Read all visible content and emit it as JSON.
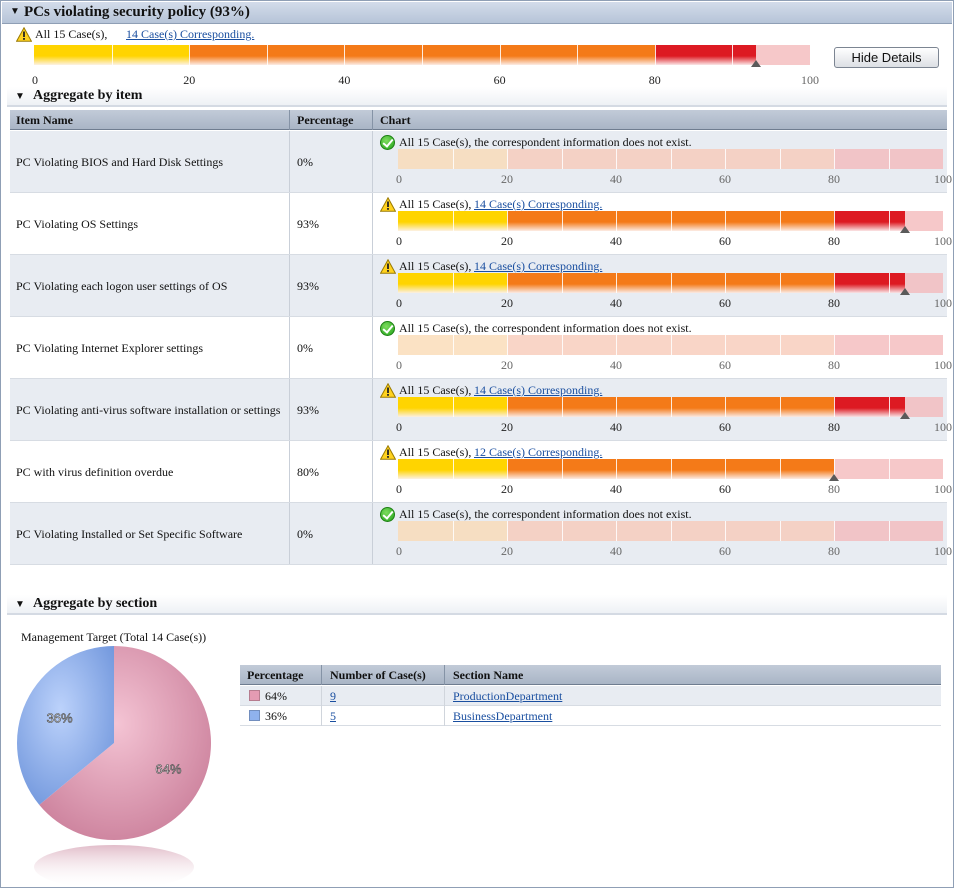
{
  "header": {
    "title": "PCs violating security policy (93%)"
  },
  "summary": {
    "total_text": "All 15 Case(s),",
    "link_text": "14 Case(s) Corresponding.",
    "percent": 93,
    "hide_button": "Hide Details"
  },
  "axis_labels": [
    "0",
    "20",
    "40",
    "60",
    "80",
    "100"
  ],
  "colors": {
    "yellow": "#ffd400",
    "orange": "#f47a18",
    "red": "#dd1a22",
    "empty": "#fadcdc",
    "accent": "#1a4fa0"
  },
  "aggregate_by_item": {
    "title": "Aggregate by item",
    "columns": [
      "Item Name",
      "Percentage",
      "Chart"
    ],
    "rows": [
      {
        "name": "PC Violating BIOS and Hard Disk Settings",
        "percentage": "0%",
        "value": 0,
        "status": "ok",
        "status_text": "All 15 Case(s), the correspondent information does not exist.",
        "link": ""
      },
      {
        "name": "PC Violating OS Settings",
        "percentage": "93%",
        "value": 93,
        "status": "warn",
        "status_text": "All 15 Case(s),",
        "link": "14 Case(s) Corresponding."
      },
      {
        "name": "PC Violating each logon user settings of OS",
        "percentage": "93%",
        "value": 93,
        "status": "warn",
        "status_text": "All 15 Case(s),",
        "link": "14 Case(s) Corresponding."
      },
      {
        "name": "PC Violating Internet Explorer settings",
        "percentage": "0%",
        "value": 0,
        "status": "ok",
        "status_text": "All 15 Case(s), the correspondent information does not exist.",
        "link": ""
      },
      {
        "name": "PC Violating anti-virus software installation or settings",
        "percentage": "93%",
        "value": 93,
        "status": "warn",
        "status_text": "All 15 Case(s),",
        "link": "14 Case(s) Corresponding."
      },
      {
        "name": "PC with virus definition overdue",
        "percentage": "80%",
        "value": 80,
        "status": "warn",
        "status_text": "All 15 Case(s),",
        "link": "12 Case(s) Corresponding."
      },
      {
        "name": "PC Violating Installed or Set Specific Software",
        "percentage": "0%",
        "value": 0,
        "status": "ok",
        "status_text": "All 15 Case(s), the correspondent information does not exist.",
        "link": ""
      }
    ]
  },
  "aggregate_by_section": {
    "title": "Aggregate by section",
    "pie_title": "Management Target (Total 14 Case(s))",
    "columns": [
      "Percentage",
      "Number of Case(s)",
      "Section Name"
    ],
    "rows": [
      {
        "percentage": "64%",
        "value": 64,
        "cases": "9",
        "section": "ProductionDepartment",
        "color": "#e49bb3"
      },
      {
        "percentage": "36%",
        "value": 36,
        "cases": "5",
        "section": "BusinessDepartment",
        "color": "#8fb2ee"
      }
    ]
  }
}
